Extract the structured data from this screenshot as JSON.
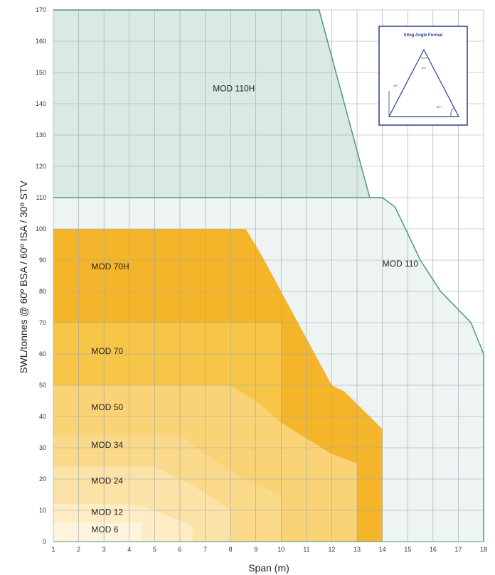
{
  "chart_data": {
    "type": "area",
    "xlabel": "Span (m)",
    "ylabel": "SWL/tonnes @ 60º BSA / 60º ISA / 30º STV",
    "xlim": [
      1,
      18
    ],
    "ylim": [
      0,
      170
    ],
    "x_ticks": [
      1,
      2,
      3,
      4,
      5,
      6,
      7,
      8,
      9,
      10,
      11,
      12,
      13,
      14,
      15,
      16,
      17,
      18
    ],
    "y_ticks": [
      0,
      10,
      20,
      30,
      40,
      50,
      60,
      70,
      80,
      90,
      100,
      110,
      120,
      130,
      140,
      150,
      160,
      170
    ],
    "grid": true,
    "colors": {
      "green_fill": "#dbe9e3",
      "green_line": "#4c9a78",
      "light_fill": "#eef3f3",
      "orange_dark": "#f5b52a",
      "orange_mid": "#f7c548",
      "orange_light": "#fbe0a0",
      "grid": "#9aa6ad"
    },
    "series": [
      {
        "name": "MOD 110H",
        "label_at": [
          7.3,
          144
        ],
        "color": "#dbe9e3",
        "x": [
          1,
          11.5,
          13.5,
          14,
          1
        ],
        "y": [
          170,
          170,
          110,
          110,
          110
        ]
      },
      {
        "name": "MOD 110",
        "label_at": [
          14,
          88
        ],
        "color": "#eef3f3",
        "x": [
          1,
          14,
          14.5,
          15.5,
          16.3,
          17.5,
          18,
          18,
          1
        ],
        "y": [
          110,
          110,
          107,
          90,
          80,
          70,
          60,
          0,
          0
        ]
      },
      {
        "name": "MOD 70H",
        "label_at": [
          2.5,
          87
        ],
        "color": "#f5b52a",
        "x": [
          1,
          8.6,
          9.2,
          12,
          12.5,
          14,
          14,
          1
        ],
        "y": [
          100,
          100,
          92,
          50,
          48,
          36,
          0,
          0
        ]
      },
      {
        "name": "MOD 70",
        "label_at": [
          2.5,
          60
        ],
        "color": "#f7c548",
        "x": [
          1,
          10,
          10,
          1
        ],
        "y": [
          70,
          70,
          0,
          0
        ]
      },
      {
        "name": "MOD 50",
        "label_at": [
          2.5,
          42
        ],
        "color": "#f9d375",
        "x": [
          1,
          8,
          9,
          10,
          12,
          13,
          13,
          1
        ],
        "y": [
          50,
          50,
          45,
          38,
          28,
          25,
          0,
          0
        ]
      },
      {
        "name": "MOD 34",
        "label_at": [
          2.5,
          30
        ],
        "color": "#fad98a",
        "x": [
          1,
          6,
          7,
          8.5,
          10,
          10,
          1
        ],
        "y": [
          34,
          34,
          28,
          20,
          15,
          0,
          0
        ]
      },
      {
        "name": "MOD 24",
        "label_at": [
          2.5,
          18.5
        ],
        "color": "#fbe3a8",
        "x": [
          1,
          5,
          6.5,
          8,
          8,
          1
        ],
        "y": [
          24,
          24,
          18,
          10,
          0,
          0
        ]
      },
      {
        "name": "MOD 12",
        "label_at": [
          2.5,
          8.5
        ],
        "color": "#fdecc4",
        "x": [
          1,
          4,
          5,
          6.5,
          6.5,
          1
        ],
        "y": [
          12,
          12,
          10,
          5,
          0,
          0
        ]
      },
      {
        "name": "MOD 6",
        "label_at": [
          2.5,
          3
        ],
        "color": "#fef4dd",
        "x": [
          1,
          4.5,
          4.5,
          1
        ],
        "y": [
          6,
          6,
          0,
          0
        ]
      }
    ],
    "inset": {
      "title": "Sling Angle Format",
      "angles": [
        "60º",
        "60º",
        "30º"
      ]
    }
  }
}
